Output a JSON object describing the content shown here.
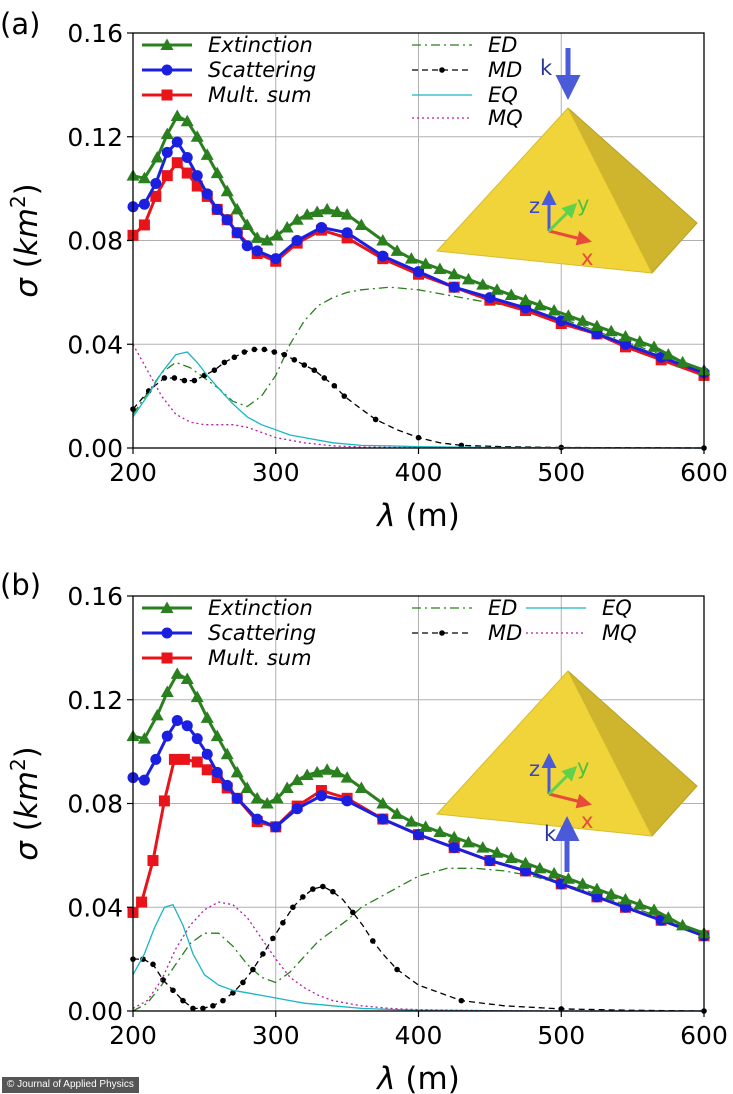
{
  "credit": "© Journal of Applied Physics",
  "chart_data": [
    {
      "panel_label": "(a)",
      "type": "line",
      "xlabel": "λ (m)",
      "ylabel": "σ (km²)",
      "xlim": [
        200,
        600
      ],
      "ylim": [
        0,
        0.16
      ],
      "xticks": [
        200,
        300,
        400,
        500,
        600
      ],
      "yticks": [
        0.0,
        0.04,
        0.08,
        0.12,
        0.16
      ],
      "xtick_labels": [
        "200",
        "300",
        "400",
        "500",
        "600"
      ],
      "ytick_labels": [
        "0.00",
        "0.04",
        "0.08",
        "0.12",
        "0.16"
      ],
      "grid": true,
      "legend": [
        "Extinction",
        "Scattering",
        "Mult. sum",
        "ED",
        "MD",
        "EQ",
        "MQ"
      ],
      "inset": {
        "k": "k",
        "x": "x",
        "y": "y",
        "z": "z",
        "incidence": "from top"
      },
      "series": [
        {
          "name": "Extinction",
          "color": "#2a7f1e",
          "marker": "triangle",
          "x": [
            200,
            208,
            217,
            224,
            231,
            238,
            245,
            252,
            259,
            266,
            273,
            280,
            287,
            294,
            301,
            308,
            315,
            322,
            329,
            336,
            343,
            350,
            360,
            375,
            385,
            395,
            405,
            415,
            425,
            435,
            445,
            455,
            465,
            475,
            485,
            495,
            505,
            515,
            525,
            535,
            545,
            555,
            565,
            575,
            585,
            600
          ],
          "y": [
            0.105,
            0.104,
            0.112,
            0.121,
            0.128,
            0.126,
            0.12,
            0.113,
            0.106,
            0.099,
            0.092,
            0.086,
            0.081,
            0.08,
            0.082,
            0.085,
            0.088,
            0.09,
            0.091,
            0.092,
            0.091,
            0.09,
            0.086,
            0.08,
            0.076,
            0.073,
            0.071,
            0.069,
            0.067,
            0.065,
            0.063,
            0.061,
            0.059,
            0.057,
            0.055,
            0.053,
            0.051,
            0.049,
            0.047,
            0.045,
            0.043,
            0.041,
            0.039,
            0.036,
            0.033,
            0.03
          ]
        },
        {
          "name": "Scattering",
          "color": "#1a1fe0",
          "marker": "circle",
          "x": [
            200,
            208,
            216,
            224,
            231,
            238,
            245,
            252,
            259,
            266,
            273,
            280,
            287,
            300,
            315,
            332,
            350,
            375,
            400,
            425,
            450,
            475,
            500,
            525,
            545,
            570,
            600
          ],
          "y": [
            0.093,
            0.094,
            0.102,
            0.114,
            0.118,
            0.112,
            0.105,
            0.098,
            0.092,
            0.088,
            0.083,
            0.078,
            0.076,
            0.073,
            0.08,
            0.085,
            0.083,
            0.074,
            0.068,
            0.062,
            0.058,
            0.054,
            0.049,
            0.044,
            0.04,
            0.035,
            0.029
          ]
        },
        {
          "name": "Mult. sum",
          "color": "#e8141a",
          "marker": "square",
          "x": [
            200,
            208,
            216,
            224,
            231,
            238,
            245,
            252,
            259,
            266,
            273,
            287,
            300,
            315,
            332,
            350,
            375,
            400,
            425,
            450,
            475,
            500,
            525,
            545,
            570,
            600
          ],
          "y": [
            0.082,
            0.086,
            0.097,
            0.105,
            0.11,
            0.106,
            0.101,
            0.097,
            0.092,
            0.088,
            0.083,
            0.075,
            0.072,
            0.079,
            0.084,
            0.081,
            0.073,
            0.067,
            0.062,
            0.057,
            0.053,
            0.048,
            0.044,
            0.039,
            0.034,
            0.028
          ]
        },
        {
          "name": "ED",
          "color": "#2a7f1e",
          "style": "dashdot",
          "x": [
            200,
            210,
            220,
            230,
            240,
            250,
            260,
            270,
            280,
            290,
            300,
            310,
            320,
            330,
            340,
            350,
            360,
            380,
            400,
            420,
            440,
            460,
            480,
            500,
            520,
            540,
            560,
            580,
            600
          ],
          "y": [
            0.013,
            0.021,
            0.029,
            0.033,
            0.031,
            0.027,
            0.023,
            0.018,
            0.016,
            0.02,
            0.028,
            0.04,
            0.049,
            0.055,
            0.058,
            0.06,
            0.061,
            0.062,
            0.061,
            0.059,
            0.057,
            0.055,
            0.052,
            0.05,
            0.046,
            0.042,
            0.038,
            0.034,
            0.03
          ]
        },
        {
          "name": "MD",
          "color": "#000000",
          "style": "dashed",
          "marker": "dot",
          "x": [
            200,
            211,
            222,
            229,
            236,
            243,
            250,
            257,
            264,
            271,
            278,
            285,
            292,
            299,
            306,
            313,
            320,
            327,
            334,
            341,
            348,
            355,
            370,
            385,
            400,
            415,
            430,
            460,
            500,
            545,
            600
          ],
          "y": [
            0.015,
            0.022,
            0.027,
            0.027,
            0.026,
            0.026,
            0.028,
            0.03,
            0.033,
            0.035,
            0.037,
            0.038,
            0.038,
            0.037,
            0.036,
            0.034,
            0.032,
            0.03,
            0.027,
            0.024,
            0.02,
            0.017,
            0.011,
            0.007,
            0.004,
            0.002,
            0.001,
            0.0005,
            0.0002,
            0.0001,
            0.0
          ]
        },
        {
          "name": "EQ",
          "color": "#19b6c4",
          "style": "solid",
          "x": [
            200,
            210,
            220,
            230,
            238,
            245,
            252,
            260,
            270,
            280,
            290,
            300,
            310,
            320,
            340,
            360,
            380,
            400,
            450,
            500,
            600
          ],
          "y": [
            0.012,
            0.02,
            0.029,
            0.036,
            0.037,
            0.033,
            0.028,
            0.023,
            0.017,
            0.012,
            0.009,
            0.007,
            0.005,
            0.004,
            0.002,
            0.001,
            0.0008,
            0.0005,
            0.0002,
            0.0001,
            0.0
          ]
        },
        {
          "name": "MQ",
          "color": "#b51ca5",
          "style": "dotted",
          "x": [
            200,
            210,
            220,
            230,
            240,
            250,
            260,
            270,
            280,
            290,
            300,
            310,
            320,
            340,
            360,
            400,
            450,
            500,
            600
          ],
          "y": [
            0.04,
            0.03,
            0.02,
            0.013,
            0.01,
            0.009,
            0.009,
            0.009,
            0.008,
            0.006,
            0.004,
            0.003,
            0.002,
            0.0008,
            0.0004,
            0.0001,
            0.0,
            0.0,
            0.0
          ]
        }
      ]
    },
    {
      "panel_label": "(b)",
      "type": "line",
      "xlabel": "λ (m)",
      "ylabel": "σ (km²)",
      "xlim": [
        200,
        600
      ],
      "ylim": [
        0,
        0.16
      ],
      "xticks": [
        200,
        300,
        400,
        500,
        600
      ],
      "yticks": [
        0.0,
        0.04,
        0.08,
        0.12,
        0.16
      ],
      "xtick_labels": [
        "200",
        "300",
        "400",
        "500",
        "600"
      ],
      "ytick_labels": [
        "0.00",
        "0.04",
        "0.08",
        "0.12",
        "0.16"
      ],
      "grid": true,
      "legend": [
        "Extinction",
        "Scattering",
        "Mult. sum",
        "ED",
        "MD",
        "EQ",
        "MQ"
      ],
      "inset": {
        "k": "k",
        "x": "x",
        "y": "y",
        "z": "z",
        "incidence": "from bottom"
      },
      "series": [
        {
          "name": "Extinction",
          "color": "#2a7f1e",
          "marker": "triangle",
          "x": [
            200,
            208,
            217,
            224,
            231,
            238,
            245,
            252,
            259,
            266,
            273,
            280,
            287,
            294,
            301,
            308,
            315,
            322,
            329,
            336,
            343,
            350,
            360,
            375,
            385,
            395,
            405,
            415,
            425,
            435,
            445,
            455,
            465,
            475,
            485,
            495,
            505,
            515,
            525,
            535,
            545,
            555,
            565,
            575,
            585,
            600
          ],
          "y": [
            0.106,
            0.105,
            0.114,
            0.123,
            0.13,
            0.128,
            0.121,
            0.113,
            0.106,
            0.099,
            0.092,
            0.086,
            0.082,
            0.08,
            0.082,
            0.086,
            0.089,
            0.091,
            0.092,
            0.093,
            0.092,
            0.09,
            0.086,
            0.08,
            0.076,
            0.073,
            0.071,
            0.069,
            0.067,
            0.065,
            0.063,
            0.061,
            0.059,
            0.057,
            0.055,
            0.053,
            0.051,
            0.049,
            0.047,
            0.045,
            0.043,
            0.041,
            0.039,
            0.036,
            0.033,
            0.03
          ]
        },
        {
          "name": "Scattering",
          "color": "#1a1fe0",
          "marker": "circle",
          "x": [
            200,
            208,
            216,
            224,
            231,
            238,
            245,
            252,
            259,
            266,
            273,
            287,
            300,
            315,
            332,
            350,
            375,
            400,
            425,
            450,
            475,
            500,
            525,
            545,
            570,
            600
          ],
          "y": [
            0.09,
            0.089,
            0.097,
            0.106,
            0.112,
            0.11,
            0.105,
            0.099,
            0.092,
            0.087,
            0.082,
            0.074,
            0.071,
            0.078,
            0.083,
            0.081,
            0.074,
            0.068,
            0.063,
            0.058,
            0.054,
            0.049,
            0.044,
            0.04,
            0.035,
            0.029
          ]
        },
        {
          "name": "Mult. sum",
          "color": "#e8141a",
          "marker": "square",
          "x": [
            200,
            206,
            214,
            222,
            229,
            236,
            245,
            252,
            259,
            266,
            273,
            287,
            300,
            315,
            332,
            350,
            375,
            400,
            425,
            450,
            475,
            500,
            525,
            545,
            570,
            600
          ],
          "y": [
            0.038,
            0.042,
            0.058,
            0.081,
            0.097,
            0.097,
            0.096,
            0.093,
            0.09,
            0.086,
            0.082,
            0.073,
            0.071,
            0.079,
            0.085,
            0.082,
            0.074,
            0.068,
            0.063,
            0.058,
            0.054,
            0.049,
            0.044,
            0.04,
            0.035,
            0.029
          ]
        },
        {
          "name": "ED",
          "color": "#2a7f1e",
          "style": "dashdot",
          "x": [
            200,
            210,
            220,
            230,
            240,
            250,
            260,
            270,
            280,
            290,
            300,
            310,
            320,
            330,
            340,
            350,
            360,
            380,
            400,
            420,
            440,
            460,
            480,
            500,
            520,
            540,
            560,
            580,
            600
          ],
          "y": [
            0.0,
            0.003,
            0.01,
            0.018,
            0.026,
            0.03,
            0.03,
            0.025,
            0.018,
            0.013,
            0.011,
            0.015,
            0.021,
            0.027,
            0.031,
            0.035,
            0.04,
            0.046,
            0.052,
            0.055,
            0.055,
            0.054,
            0.052,
            0.049,
            0.046,
            0.042,
            0.038,
            0.034,
            0.03
          ]
        },
        {
          "name": "MD",
          "color": "#000000",
          "style": "dashed",
          "marker": "dot",
          "x": [
            200,
            207,
            214,
            221,
            228,
            235,
            242,
            249,
            256,
            263,
            270,
            277,
            284,
            291,
            298,
            305,
            312,
            319,
            326,
            333,
            340,
            347,
            354,
            361,
            368,
            375,
            385,
            400,
            430,
            460,
            500,
            545,
            600
          ],
          "y": [
            0.02,
            0.02,
            0.018,
            0.012,
            0.008,
            0.004,
            0.001,
            0.001,
            0.002,
            0.004,
            0.007,
            0.011,
            0.016,
            0.022,
            0.028,
            0.034,
            0.04,
            0.044,
            0.047,
            0.048,
            0.046,
            0.043,
            0.038,
            0.033,
            0.027,
            0.022,
            0.016,
            0.01,
            0.004,
            0.002,
            0.0008,
            0.0003,
            0.0
          ]
        },
        {
          "name": "EQ",
          "color": "#19b6c4",
          "style": "solid",
          "x": [
            200,
            208,
            215,
            222,
            228,
            235,
            242,
            250,
            260,
            270,
            280,
            290,
            300,
            310,
            320,
            340,
            360,
            380,
            400,
            450,
            500,
            600
          ],
          "y": [
            0.014,
            0.022,
            0.032,
            0.04,
            0.041,
            0.033,
            0.022,
            0.014,
            0.01,
            0.008,
            0.007,
            0.006,
            0.005,
            0.004,
            0.003,
            0.002,
            0.001,
            0.0006,
            0.0003,
            0.0001,
            0.0,
            0.0
          ]
        },
        {
          "name": "MQ",
          "color": "#b51ca5",
          "style": "dotted",
          "x": [
            200,
            210,
            220,
            230,
            240,
            250,
            260,
            270,
            280,
            290,
            300,
            310,
            320,
            330,
            340,
            350,
            360,
            380,
            400,
            450,
            500,
            600
          ],
          "y": [
            0.001,
            0.004,
            0.012,
            0.024,
            0.033,
            0.039,
            0.042,
            0.041,
            0.036,
            0.028,
            0.02,
            0.013,
            0.009,
            0.006,
            0.004,
            0.003,
            0.002,
            0.001,
            0.0005,
            0.0001,
            0.0,
            0.0
          ]
        }
      ]
    }
  ]
}
